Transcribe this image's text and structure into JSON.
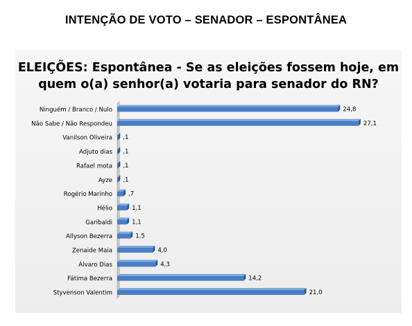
{
  "page_title": "INTENÇÃO DE VOTO – SENADOR – ESPONTÂNEA",
  "chart_data": {
    "type": "bar",
    "orientation": "horizontal",
    "title_line1": "ELEIÇÕES: Espontânea - Se as eleições fossem hoje, em",
    "title_line2": "quem o(a) senhor(a) votaria para senador do RN?",
    "categories": [
      "Ninguém / Branco / Nulo",
      "Não Sabe / Não Respondeu",
      "Vanilson Oliveira",
      "Adjuto dias",
      "Rafael mota",
      "Ayze",
      "Rogério Marinho",
      "Hélio",
      "Garibaldi",
      "Allyson Bezerra",
      "Zenaide Maia",
      "Álvaro Dias",
      "Fátima Bezerra",
      "Styvenson Valentim"
    ],
    "values": [
      24.8,
      27.1,
      0.1,
      0.1,
      0.1,
      0.1,
      0.7,
      1.1,
      1.1,
      1.5,
      4.0,
      4.3,
      14.2,
      21.0
    ],
    "value_labels": [
      "24,8",
      "27,1",
      ",1",
      ",1",
      ",1",
      ",1",
      ",7",
      "1,1",
      "1,1",
      "1,5",
      "4,0",
      "4,3",
      "14,2",
      "21,0"
    ],
    "xlim": [
      0,
      27.5
    ],
    "grid": false,
    "legend": "none",
    "colors": {
      "bar": "#4a7ec4",
      "bar_dark": "#2a5590",
      "bar_top": "#7fa7dc",
      "wall": "#c9c9c9"
    }
  }
}
